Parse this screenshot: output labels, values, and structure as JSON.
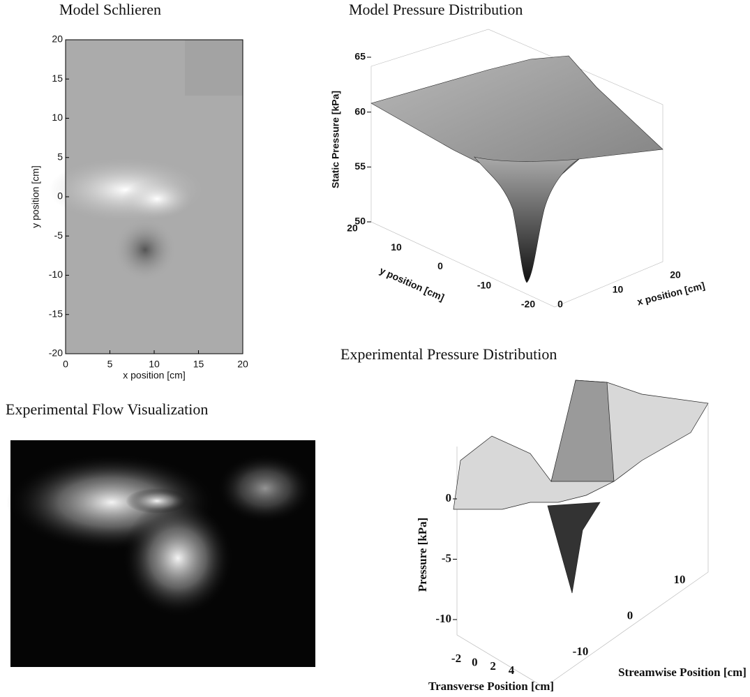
{
  "chart_data": [
    {
      "type": "heatmap",
      "title": "Model Schlieren",
      "x_label": "x position [cm]",
      "y_label": "y position [cm]",
      "xlim": [
        0,
        20
      ],
      "ylim": [
        -20,
        20
      ],
      "xticks": [
        0,
        5,
        10,
        15,
        20
      ],
      "yticks": [
        -20,
        -15,
        -10,
        -5,
        0,
        5,
        10,
        15,
        20
      ]
    },
    {
      "type": "surface3d",
      "title": "Model Pressure Distribution",
      "x_label": "x position [cm]",
      "y_label": "y position [cm]",
      "z_label": "Static Pressure [kPa]",
      "xlim": [
        0,
        20
      ],
      "ylim": [
        -20,
        20
      ],
      "zlim": [
        50,
        65
      ],
      "xticks": [
        0,
        10,
        20
      ],
      "yticks": [
        -20,
        -10,
        0,
        10,
        20
      ],
      "zticks": [
        50,
        55,
        60,
        65
      ]
    },
    {
      "type": "image",
      "title": "Experimental Flow Visualization"
    },
    {
      "type": "surface3d",
      "title": "Experimental Pressure Distribution",
      "x_label": "Streamwise Position [cm]",
      "y_label": "Transverse Position [cm]",
      "z_label": "Pressure [kPa]",
      "xlim": [
        -10,
        10
      ],
      "ylim": [
        -2,
        4
      ],
      "zlim": [
        -10,
        0
      ],
      "xticks": [
        -10,
        0,
        10
      ],
      "yticks": [
        -2,
        0,
        2,
        4
      ],
      "zticks": [
        -10,
        -5,
        0
      ]
    }
  ]
}
